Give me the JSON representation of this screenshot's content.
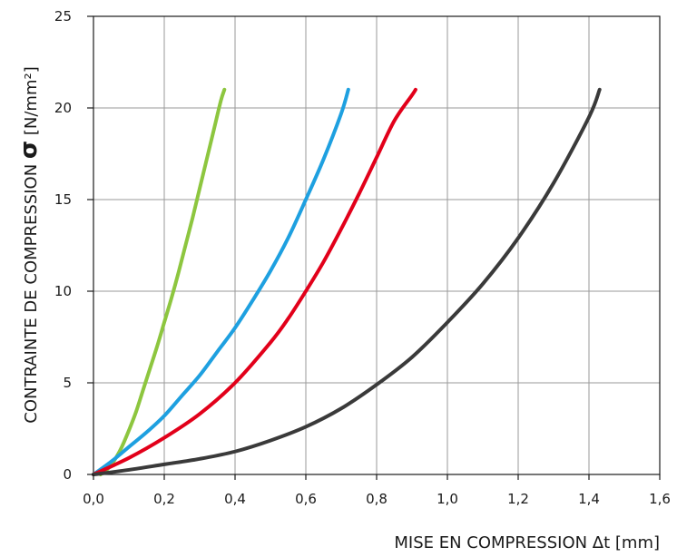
{
  "chart_data": {
    "type": "line",
    "xlabel": "MISE EN COMPRESSION Δt [mm]",
    "ylabel": {
      "prefix": "CONTRAINTE DE COMPRESSION ",
      "symbol": "σ",
      "suffix": " [N/mm²]"
    },
    "xlim": [
      0,
      1.6
    ],
    "ylim": [
      0,
      25
    ],
    "x_ticks": [
      "0,0",
      "0,2",
      "0,4",
      "0,6",
      "0,8",
      "1,0",
      "1,2",
      "1,4",
      "1,6"
    ],
    "y_ticks": [
      "0",
      "5",
      "10",
      "15",
      "20",
      "25"
    ],
    "grid": true,
    "series": [
      {
        "color": "#8dc63f",
        "x": [
          0.02,
          0.04,
          0.06,
          0.08,
          0.1,
          0.12,
          0.14,
          0.16,
          0.18,
          0.2,
          0.22,
          0.24,
          0.26,
          0.28,
          0.3,
          0.32,
          0.34,
          0.36,
          0.37
        ],
        "y": [
          0,
          0.3,
          0.8,
          1.5,
          2.4,
          3.4,
          4.6,
          5.8,
          7.0,
          8.3,
          9.6,
          11.0,
          12.5,
          14.0,
          15.6,
          17.2,
          18.8,
          20.4,
          21.0
        ]
      },
      {
        "color": "#1ea0e0",
        "x": [
          0.0,
          0.05,
          0.1,
          0.15,
          0.2,
          0.25,
          0.3,
          0.35,
          0.4,
          0.45,
          0.5,
          0.55,
          0.6,
          0.65,
          0.7,
          0.72
        ],
        "y": [
          0,
          0.7,
          1.5,
          2.3,
          3.2,
          4.3,
          5.4,
          6.7,
          8.0,
          9.5,
          11.1,
          12.9,
          15.0,
          17.2,
          19.7,
          21.0
        ]
      },
      {
        "color": "#e2001a",
        "x": [
          0.0,
          0.1,
          0.2,
          0.3,
          0.4,
          0.5,
          0.55,
          0.6,
          0.65,
          0.7,
          0.75,
          0.8,
          0.85,
          0.9,
          0.91
        ],
        "y": [
          0,
          0.9,
          2.0,
          3.3,
          5.0,
          7.2,
          8.5,
          10.0,
          11.6,
          13.4,
          15.3,
          17.3,
          19.3,
          20.7,
          21.0
        ]
      },
      {
        "color": "#3a3a3a",
        "x": [
          0.0,
          0.1,
          0.2,
          0.3,
          0.4,
          0.5,
          0.6,
          0.7,
          0.8,
          0.9,
          1.0,
          1.1,
          1.2,
          1.3,
          1.4,
          1.43
        ],
        "y": [
          0,
          0.25,
          0.55,
          0.85,
          1.25,
          1.85,
          2.6,
          3.6,
          4.9,
          6.4,
          8.3,
          10.4,
          12.9,
          15.9,
          19.5,
          21.0
        ]
      }
    ]
  }
}
